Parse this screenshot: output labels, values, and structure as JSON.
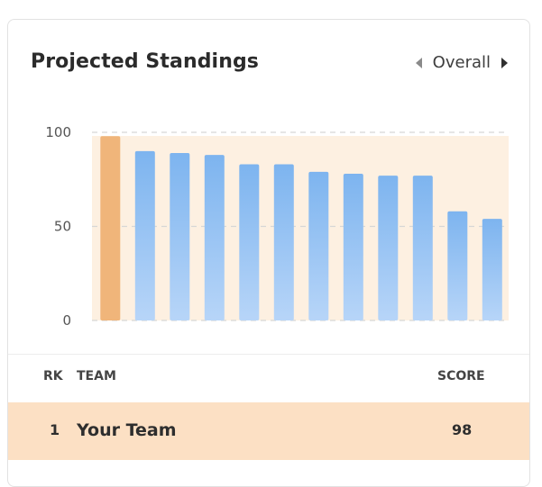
{
  "card": {
    "title": "Projected Standings",
    "nav_label": "Overall"
  },
  "chart_data": {
    "type": "bar",
    "categories": [
      "",
      "",
      "",
      "",
      "",
      "",
      "",
      "",
      "",
      "",
      "",
      ""
    ],
    "values": [
      98,
      90,
      89,
      88,
      83,
      83,
      79,
      78,
      77,
      77,
      58,
      54
    ],
    "highlight_index": 0,
    "y_ticks": [
      "0",
      "50",
      "100"
    ],
    "ylim": [
      0,
      100
    ],
    "colors": {
      "highlight": "#f0b57a",
      "bar_top": "#7db4ef",
      "bar_bottom": "#b7d5f8",
      "plot_bg": "#fdf0e1",
      "gridline": "#d6d6d6"
    }
  },
  "table": {
    "headers": {
      "rk": "RK",
      "team": "TEAM",
      "score": "SCORE"
    },
    "rows": [
      {
        "rk": "1",
        "team": "Your Team",
        "score": "98"
      }
    ]
  }
}
